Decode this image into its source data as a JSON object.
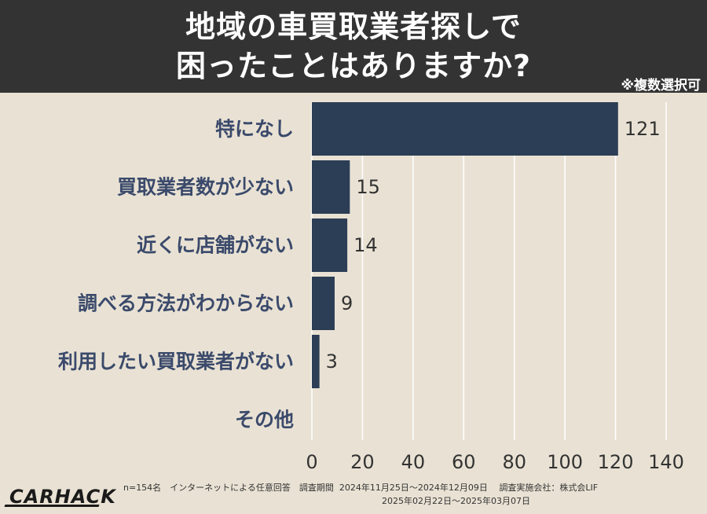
{
  "header": {
    "title_line1": "地域の車買取業者探しで",
    "title_line2": "困ったことはありますか?",
    "note": "※複数選択可"
  },
  "chart_data": {
    "type": "bar",
    "orientation": "horizontal",
    "categories": [
      "特になし",
      "買取業者数が少ない",
      "近くに店舗がない",
      "調べる方法がわからない",
      "利用したい買取業者がない",
      "その他"
    ],
    "values": [
      121,
      15,
      14,
      9,
      3,
      0
    ],
    "xlim": [
      0,
      140
    ],
    "xticks": [
      0,
      20,
      40,
      60,
      80,
      100,
      120,
      140
    ],
    "data_labels": [
      "121",
      "15",
      "14",
      "9",
      "3",
      ""
    ],
    "grid": true
  },
  "colors": {
    "background": "#e9e2d4",
    "header_bg": "#333333",
    "bar": "#2c3e55",
    "category_text": "#3b4a6b",
    "value_text": "#333333",
    "grid": "#ffffff"
  },
  "footer": {
    "logo": "CARHACK",
    "line1": "n=154名　インターネットによる任意回答　調査期間  2024年11月25日〜2024年12月09日　 調査実施会社：株式会LIF",
    "line2": "2025年02月22日〜2025年03月07日"
  }
}
